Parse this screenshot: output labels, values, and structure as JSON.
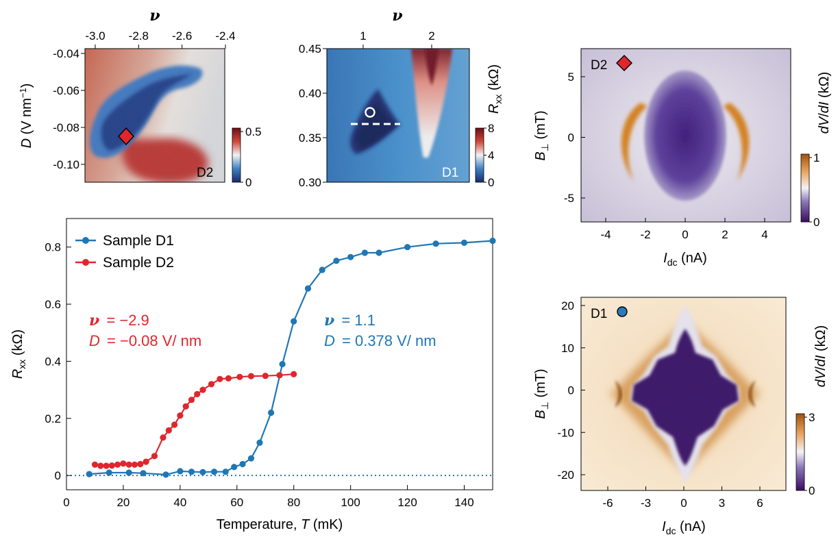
{
  "colors": {
    "d1": "#1f77b4",
    "d2": "#e0262d",
    "marker_d2": "#e0262d",
    "marker_d1": "#2b7bb9",
    "baseline": "#1f77b4",
    "nu_d2": "#e0262d",
    "nu_d1": "#1f77b4"
  },
  "chart_data": [
    {
      "id": "top-left",
      "type": "heatmap",
      "title": "",
      "xlabel_top": "ν",
      "top_ticks": [
        "-3.0",
        "-2.8",
        "-2.6",
        "-2.4"
      ],
      "ylabel": "D (V nm⁻¹)",
      "y_ticks": [
        "-0.04",
        "-0.06",
        "-0.08",
        "-0.10"
      ],
      "colorbar": {
        "ticks": [
          "0.5",
          "0"
        ],
        "range": [
          0,
          0.5
        ],
        "colormap": "blue-white-red"
      },
      "device_tag": "D2",
      "marker": {
        "shape": "diamond",
        "nu": -2.88,
        "D": -0.086
      }
    },
    {
      "id": "top-middle",
      "type": "heatmap",
      "title": "",
      "xlabel_top": "ν",
      "top_ticks": [
        "1",
        "2"
      ],
      "y_ticks": [
        "0.45",
        "0.40",
        "0.35",
        "0.30"
      ],
      "colorbar": {
        "label": "R_xx (kΩ)",
        "ticks": [
          "8",
          "4",
          "0"
        ],
        "range": [
          0,
          8
        ],
        "colormap": "blue-white-red"
      },
      "device_tag": "D1",
      "marker": {
        "shape": "circle",
        "nu": 1.1,
        "D": 0.378
      },
      "dashed_line": {
        "nu_range": [
          0.85,
          1.55
        ],
        "D": 0.365
      }
    },
    {
      "id": "top-right",
      "type": "heatmap",
      "title": "",
      "xlabel": "I_dc (nA)",
      "x_ticks": [
        "-4",
        "-2",
        "0",
        "2",
        "4"
      ],
      "ylabel": "B⊥ (mT)",
      "y_ticks": [
        "5",
        "0",
        "-5"
      ],
      "colorbar": {
        "label": "dV/dI (kΩ)",
        "ticks": [
          "1",
          "0"
        ],
        "range": [
          0,
          1
        ],
        "colormap": "purple-white-orange"
      },
      "device_tag": "D2"
    },
    {
      "id": "bottom-right",
      "type": "heatmap",
      "title": "",
      "xlabel": "I_dc (nA)",
      "x_ticks": [
        "-6",
        "-3",
        "0",
        "3",
        "6"
      ],
      "ylabel": "B⊥ (mT)",
      "y_ticks": [
        "20",
        "10",
        "0",
        "-10",
        "-20"
      ],
      "colorbar": {
        "label": "dV/dI (kΩ)",
        "ticks": [
          "3",
          "0"
        ],
        "range": [
          0,
          3
        ],
        "colormap": "purple-white-orange"
      },
      "device_tag": "D1"
    },
    {
      "id": "main",
      "type": "line",
      "title": "",
      "xlabel": "Temperature, T (mK)",
      "ylabel": "R_xx (kΩ)",
      "xlim": [
        0,
        150
      ],
      "ylim": [
        -0.05,
        0.9
      ],
      "x_ticks": [
        "0",
        "20",
        "40",
        "60",
        "80",
        "100",
        "120",
        "140"
      ],
      "y_ticks": [
        "0",
        "0.2",
        "0.4",
        "0.6",
        "0.8"
      ],
      "legend_position": "top-left",
      "series": [
        {
          "name": "Sample D1",
          "x": [
            8,
            15,
            22,
            27,
            35,
            40,
            44,
            48,
            52,
            56,
            59,
            62,
            65,
            68,
            72,
            76,
            80,
            85,
            90,
            95,
            100,
            105,
            110,
            120,
            130,
            140,
            150
          ],
          "y": [
            0.005,
            0.01,
            0.01,
            0.008,
            0.003,
            0.015,
            0.013,
            0.012,
            0.013,
            0.013,
            0.03,
            0.04,
            0.06,
            0.115,
            0.22,
            0.39,
            0.54,
            0.655,
            0.72,
            0.752,
            0.765,
            0.78,
            0.78,
            0.8,
            0.812,
            0.815,
            0.822
          ]
        },
        {
          "name": "Sample D2",
          "x": [
            10,
            12,
            14,
            16,
            18,
            20,
            22,
            24,
            26,
            28,
            31,
            34,
            36,
            38,
            40,
            42,
            44,
            46,
            48,
            51,
            54,
            57,
            61,
            65,
            70,
            75,
            80
          ],
          "y": [
            0.038,
            0.034,
            0.034,
            0.035,
            0.038,
            0.042,
            0.038,
            0.038,
            0.04,
            0.048,
            0.068,
            0.133,
            0.158,
            0.178,
            0.21,
            0.242,
            0.265,
            0.285,
            0.3,
            0.32,
            0.338,
            0.34,
            0.345,
            0.348,
            0.349,
            0.351,
            0.355
          ]
        }
      ],
      "baseline": {
        "y": 0,
        "style": "dotted"
      },
      "annotations": [
        {
          "nu_label": "ν",
          "nu_value": "= −2.9",
          "D_label": "D",
          "D_value": "= −0.08 V/ nm",
          "series": "Sample D2"
        },
        {
          "nu_label": "ν",
          "nu_value": "= 1.1",
          "D_label": "D",
          "D_value": "= 0.378 V/ nm",
          "series": "Sample D1"
        }
      ]
    }
  ]
}
